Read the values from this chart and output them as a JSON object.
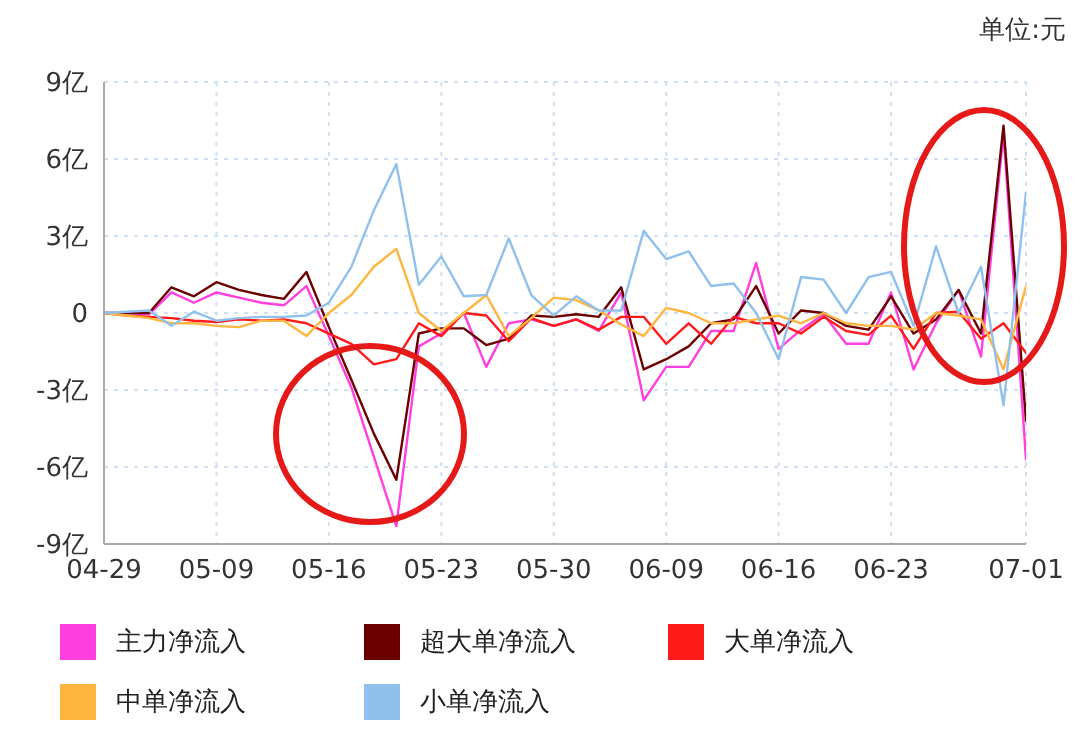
{
  "chart_data": {
    "type": "line",
    "annotations": [
      "单位:元"
    ],
    "categories": [
      "04-29",
      null,
      null,
      null,
      null,
      "05-09",
      null,
      null,
      null,
      null,
      "05-16",
      null,
      null,
      null,
      null,
      "05-23",
      null,
      null,
      null,
      null,
      "05-30",
      null,
      null,
      null,
      null,
      "06-09",
      null,
      null,
      null,
      null,
      "06-16",
      null,
      null,
      null,
      null,
      "06-23",
      null,
      null,
      null,
      null,
      null,
      "07-01"
    ],
    "series": [
      {
        "name": "主力净流入",
        "color": "#ff3fdf",
        "values": [
          0,
          0,
          -0.05,
          0.8,
          0.4,
          0.8,
          0.6,
          0.4,
          0.3,
          1.05,
          -0.9,
          -2.9,
          -5.6,
          -8.3,
          -1.3,
          -0.8,
          0,
          -2.1,
          -0.4,
          -0.25,
          -0.5,
          -0.25,
          -0.7,
          0.8,
          -3.4,
          -2.1,
          -2.1,
          -0.7,
          -0.7,
          1.95,
          -1.4,
          -0.65,
          -0.05,
          -1.2,
          -1.2,
          0.8,
          -2.2,
          -0.4,
          0.9,
          -1.7,
          7.0,
          -5.7
        ]
      },
      {
        "name": "超大单净流入",
        "color": "#6b0000",
        "values": [
          0,
          0,
          0,
          1.0,
          0.65,
          1.2,
          0.9,
          0.7,
          0.55,
          1.6,
          -0.55,
          -2.6,
          -4.7,
          -6.5,
          -0.8,
          -0.6,
          -0.6,
          -1.25,
          -1.0,
          -0.1,
          -0.15,
          -0.05,
          -0.15,
          1.0,
          -2.2,
          -1.8,
          -1.3,
          -0.4,
          -0.25,
          1.05,
          -0.8,
          0.1,
          0,
          -0.5,
          -0.65,
          0.65,
          -0.8,
          -0.25,
          0.9,
          -0.8,
          7.3,
          -4.2
        ]
      },
      {
        "name": "大单净流入",
        "color": "#ff1a1a",
        "values": [
          0,
          -0.1,
          -0.15,
          -0.2,
          -0.3,
          -0.35,
          -0.25,
          -0.3,
          -0.25,
          -0.4,
          -0.8,
          -1.2,
          -2.0,
          -1.8,
          -0.4,
          -0.9,
          0,
          -0.1,
          -1.1,
          -0.2,
          -0.5,
          -0.25,
          -0.65,
          -0.15,
          -0.15,
          -1.2,
          -0.4,
          -1.2,
          -0.15,
          -0.4,
          -0.4,
          -0.8,
          -0.15,
          -0.7,
          -0.85,
          -0.1,
          -1.4,
          0,
          0.05,
          -1.0,
          -0.4,
          -1.55
        ]
      },
      {
        "name": "中单净流入",
        "color": "#ffb640",
        "values": [
          0,
          -0.1,
          -0.2,
          -0.4,
          -0.4,
          -0.5,
          -0.55,
          -0.3,
          -0.3,
          -0.9,
          0,
          0.7,
          1.8,
          2.5,
          0,
          -0.7,
          0,
          0.7,
          -0.9,
          -0.2,
          0.6,
          0.5,
          0.1,
          -0.45,
          -0.9,
          0.2,
          0,
          -0.4,
          -0.4,
          -0.25,
          -0.1,
          -0.4,
          0,
          -0.4,
          -0.5,
          -0.5,
          -0.65,
          0,
          -0.1,
          -0.25,
          -2.2,
          1.05
        ]
      },
      {
        "name": "小单净流入",
        "color": "#90c0ec",
        "values": [
          0,
          0.05,
          0.1,
          -0.5,
          0.05,
          -0.3,
          -0.2,
          -0.15,
          -0.15,
          -0.1,
          0.4,
          1.8,
          4.0,
          5.8,
          1.1,
          2.2,
          0.65,
          0.7,
          2.9,
          0.7,
          -0.1,
          0.65,
          0.1,
          0.1,
          3.2,
          2.1,
          2.4,
          1.05,
          1.15,
          0,
          -1.8,
          1.4,
          1.3,
          0,
          1.4,
          1.6,
          -0.5,
          2.6,
          0,
          1.8,
          -3.6,
          4.7
        ]
      }
    ],
    "ylim": [
      -9,
      9
    ],
    "yticks": [
      {
        "value": -9,
        "label": "-9亿"
      },
      {
        "value": -6,
        "label": "-6亿"
      },
      {
        "value": -3,
        "label": "-3亿"
      },
      0,
      {
        "value": 3,
        "label": "3亿"
      },
      {
        "value": 6,
        "label": "6亿"
      },
      {
        "value": 9,
        "label": "9亿"
      }
    ],
    "grid": true,
    "legend": "bottom",
    "marker": "none",
    "line_style": "solid"
  }
}
